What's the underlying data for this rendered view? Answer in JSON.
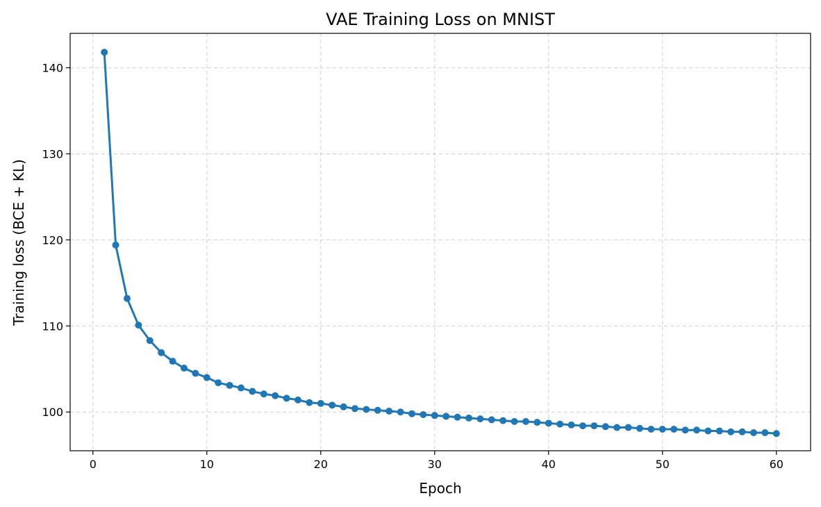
{
  "chart_data": {
    "type": "line",
    "title": "VAE Training Loss on MNIST",
    "xlabel": "Epoch",
    "ylabel": "Training loss (BCE + KL)",
    "xlim": [
      -2,
      63
    ],
    "ylim": [
      95.5,
      144.0
    ],
    "xticks": [
      0,
      10,
      20,
      30,
      40,
      50,
      60
    ],
    "yticks": [
      100,
      110,
      120,
      130,
      140
    ],
    "grid": true,
    "line_color": "#1f77b4",
    "series": [
      {
        "x": [
          1,
          2,
          3,
          4,
          5,
          6,
          7,
          8,
          9,
          10,
          11,
          12,
          13,
          14,
          15,
          16,
          17,
          18,
          19,
          20,
          21,
          22,
          23,
          24,
          25,
          26,
          27,
          28,
          29,
          30,
          31,
          32,
          33,
          34,
          35,
          36,
          37,
          38,
          39,
          40,
          41,
          42,
          43,
          44,
          45,
          46,
          47,
          48,
          49,
          50,
          51,
          52,
          53,
          54,
          55,
          56,
          57,
          58,
          59,
          60
        ],
        "y": [
          141.8,
          119.4,
          113.2,
          110.1,
          108.3,
          106.9,
          105.9,
          105.1,
          104.5,
          104.0,
          103.4,
          103.1,
          102.8,
          102.4,
          102.1,
          101.9,
          101.6,
          101.4,
          101.1,
          101.0,
          100.8,
          100.6,
          100.4,
          100.3,
          100.2,
          100.1,
          100.0,
          99.8,
          99.7,
          99.6,
          99.5,
          99.4,
          99.3,
          99.2,
          99.1,
          99.0,
          98.9,
          98.9,
          98.8,
          98.7,
          98.6,
          98.5,
          98.4,
          98.4,
          98.3,
          98.2,
          98.2,
          98.1,
          98.0,
          98.0,
          98.0,
          97.9,
          97.9,
          97.8,
          97.8,
          97.7,
          97.7,
          97.6,
          97.6,
          97.5
        ]
      }
    ]
  }
}
